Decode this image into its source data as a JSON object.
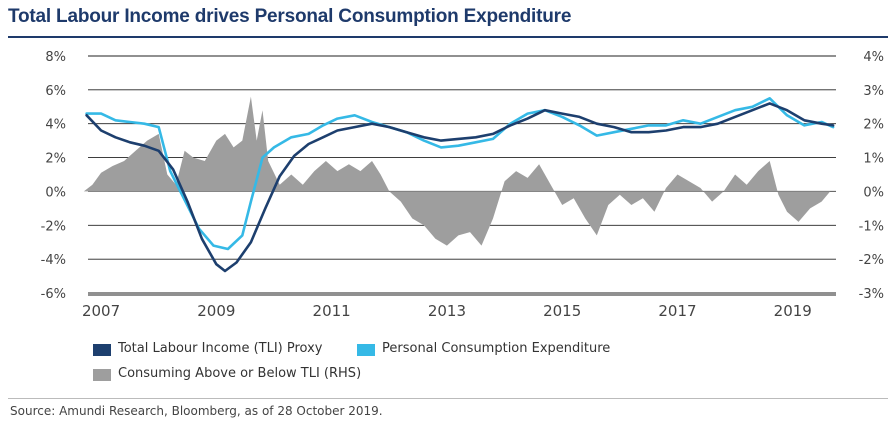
{
  "title": "Total Labour Income drives Personal Consumption Expenditure",
  "source": "Source: Amundi Research, Bloomberg, as of 28 October 2019.",
  "colors": {
    "tli": "#1d3f6e",
    "pce": "#35b9e6",
    "gap": "#9e9e9e",
    "title": "#1e3a6b"
  },
  "legend": {
    "tli": "Total Labour Income (TLI) Proxy",
    "pce": "Personal Consumption Expenditure",
    "gap": "Consuming Above or Below TLI (RHS)"
  },
  "chart_data": {
    "type": "line",
    "x_tick_labels": [
      "2007",
      "2009",
      "2011",
      "2013",
      "2015",
      "2017",
      "2019"
    ],
    "x_ticks": [
      2007,
      2009,
      2011,
      2013,
      2015,
      2017,
      2019
    ],
    "xlim": [
      2006.6,
      2019.75
    ],
    "y_left": {
      "ticks": [
        -6,
        -4,
        -2,
        0,
        2,
        4,
        6,
        8
      ],
      "labels": [
        "-6%",
        "-4%",
        "-2%",
        "0%",
        "2%",
        "4%",
        "6%",
        "8%"
      ],
      "ylim": [
        -6,
        8
      ]
    },
    "y_right": {
      "ticks": [
        -3,
        -2,
        -1,
        0,
        1,
        2,
        3,
        4
      ],
      "labels": [
        "-3%",
        "-2%",
        "-1%",
        "0%",
        "1%",
        "2%",
        "3%",
        "4%"
      ],
      "ylim": [
        -3,
        4
      ]
    },
    "series": [
      {
        "name": "Total Labour Income (TLI) Proxy",
        "axis": "left",
        "chart": "line",
        "points": [
          [
            2006.75,
            4.5
          ],
          [
            2007.0,
            3.6
          ],
          [
            2007.25,
            3.2
          ],
          [
            2007.5,
            2.9
          ],
          [
            2007.75,
            2.7
          ],
          [
            2008.0,
            2.4
          ],
          [
            2008.25,
            1.3
          ],
          [
            2008.5,
            -0.6
          ],
          [
            2008.75,
            -2.8
          ],
          [
            2009.0,
            -4.3
          ],
          [
            2009.15,
            -4.7
          ],
          [
            2009.35,
            -4.2
          ],
          [
            2009.6,
            -3.0
          ],
          [
            2009.85,
            -1.0
          ],
          [
            2010.1,
            0.9
          ],
          [
            2010.35,
            2.1
          ],
          [
            2010.6,
            2.8
          ],
          [
            2010.85,
            3.2
          ],
          [
            2011.1,
            3.6
          ],
          [
            2011.4,
            3.8
          ],
          [
            2011.7,
            4.0
          ],
          [
            2012.0,
            3.8
          ],
          [
            2012.3,
            3.5
          ],
          [
            2012.6,
            3.2
          ],
          [
            2012.9,
            3.0
          ],
          [
            2013.2,
            3.1
          ],
          [
            2013.5,
            3.2
          ],
          [
            2013.8,
            3.4
          ],
          [
            2014.1,
            3.9
          ],
          [
            2014.4,
            4.3
          ],
          [
            2014.7,
            4.8
          ],
          [
            2015.0,
            4.6
          ],
          [
            2015.3,
            4.4
          ],
          [
            2015.6,
            4.0
          ],
          [
            2015.9,
            3.8
          ],
          [
            2016.2,
            3.5
          ],
          [
            2016.5,
            3.5
          ],
          [
            2016.8,
            3.6
          ],
          [
            2017.1,
            3.8
          ],
          [
            2017.4,
            3.8
          ],
          [
            2017.7,
            4.0
          ],
          [
            2018.0,
            4.4
          ],
          [
            2018.3,
            4.8
          ],
          [
            2018.6,
            5.2
          ],
          [
            2018.9,
            4.8
          ],
          [
            2019.2,
            4.2
          ],
          [
            2019.5,
            4.0
          ],
          [
            2019.7,
            3.9
          ]
        ]
      },
      {
        "name": "Personal Consumption Expenditure",
        "axis": "left",
        "chart": "line",
        "points": [
          [
            2006.75,
            4.6
          ],
          [
            2007.0,
            4.6
          ],
          [
            2007.25,
            4.2
          ],
          [
            2007.5,
            4.1
          ],
          [
            2007.75,
            4.0
          ],
          [
            2008.0,
            3.8
          ],
          [
            2008.2,
            1.2
          ],
          [
            2008.45,
            -0.5
          ],
          [
            2008.7,
            -2.2
          ],
          [
            2008.95,
            -3.2
          ],
          [
            2009.2,
            -3.4
          ],
          [
            2009.45,
            -2.6
          ],
          [
            2009.6,
            -0.6
          ],
          [
            2009.8,
            2.0
          ],
          [
            2010.0,
            2.6
          ],
          [
            2010.3,
            3.2
          ],
          [
            2010.6,
            3.4
          ],
          [
            2010.85,
            3.9
          ],
          [
            2011.1,
            4.3
          ],
          [
            2011.4,
            4.5
          ],
          [
            2011.7,
            4.1
          ],
          [
            2012.0,
            3.8
          ],
          [
            2012.3,
            3.5
          ],
          [
            2012.6,
            3.0
          ],
          [
            2012.9,
            2.6
          ],
          [
            2013.2,
            2.7
          ],
          [
            2013.5,
            2.9
          ],
          [
            2013.8,
            3.1
          ],
          [
            2014.1,
            4.0
          ],
          [
            2014.4,
            4.6
          ],
          [
            2014.7,
            4.8
          ],
          [
            2015.0,
            4.4
          ],
          [
            2015.3,
            3.9
          ],
          [
            2015.6,
            3.3
          ],
          [
            2015.9,
            3.5
          ],
          [
            2016.2,
            3.7
          ],
          [
            2016.5,
            3.9
          ],
          [
            2016.8,
            3.9
          ],
          [
            2017.1,
            4.2
          ],
          [
            2017.4,
            4.0
          ],
          [
            2017.7,
            4.4
          ],
          [
            2018.0,
            4.8
          ],
          [
            2018.3,
            5.0
          ],
          [
            2018.6,
            5.5
          ],
          [
            2018.9,
            4.5
          ],
          [
            2019.2,
            3.9
          ],
          [
            2019.5,
            4.1
          ],
          [
            2019.7,
            3.8
          ]
        ]
      },
      {
        "name": "Consuming Above or Below TLI (RHS)",
        "axis": "right",
        "chart": "area",
        "points": [
          [
            2006.7,
            0.0
          ],
          [
            2006.85,
            0.2
          ],
          [
            2007.0,
            0.55
          ],
          [
            2007.2,
            0.75
          ],
          [
            2007.4,
            0.9
          ],
          [
            2007.6,
            1.2
          ],
          [
            2007.8,
            1.5
          ],
          [
            2008.0,
            1.7
          ],
          [
            2008.15,
            0.5
          ],
          [
            2008.3,
            0.2
          ],
          [
            2008.45,
            1.2
          ],
          [
            2008.6,
            1.0
          ],
          [
            2008.8,
            0.9
          ],
          [
            2009.0,
            1.5
          ],
          [
            2009.15,
            1.7
          ],
          [
            2009.3,
            1.3
          ],
          [
            2009.45,
            1.5
          ],
          [
            2009.6,
            2.8
          ],
          [
            2009.7,
            1.5
          ],
          [
            2009.8,
            2.4
          ],
          [
            2009.9,
            0.9
          ],
          [
            2010.1,
            0.2
          ],
          [
            2010.3,
            0.5
          ],
          [
            2010.5,
            0.2
          ],
          [
            2010.7,
            0.6
          ],
          [
            2010.9,
            0.9
          ],
          [
            2011.1,
            0.6
          ],
          [
            2011.3,
            0.8
          ],
          [
            2011.5,
            0.6
          ],
          [
            2011.7,
            0.9
          ],
          [
            2011.85,
            0.5
          ],
          [
            2012.0,
            0.0
          ],
          [
            2012.2,
            -0.3
          ],
          [
            2012.4,
            -0.8
          ],
          [
            2012.6,
            -1.0
          ],
          [
            2012.8,
            -1.4
          ],
          [
            2013.0,
            -1.6
          ],
          [
            2013.2,
            -1.3
          ],
          [
            2013.4,
            -1.2
          ],
          [
            2013.6,
            -1.6
          ],
          [
            2013.8,
            -0.8
          ],
          [
            2014.0,
            0.3
          ],
          [
            2014.2,
            0.6
          ],
          [
            2014.4,
            0.4
          ],
          [
            2014.6,
            0.8
          ],
          [
            2014.8,
            0.2
          ],
          [
            2015.0,
            -0.4
          ],
          [
            2015.2,
            -0.2
          ],
          [
            2015.4,
            -0.8
          ],
          [
            2015.6,
            -1.3
          ],
          [
            2015.8,
            -0.4
          ],
          [
            2016.0,
            -0.1
          ],
          [
            2016.2,
            -0.4
          ],
          [
            2016.4,
            -0.2
          ],
          [
            2016.6,
            -0.6
          ],
          [
            2016.8,
            0.1
          ],
          [
            2017.0,
            0.5
          ],
          [
            2017.2,
            0.3
          ],
          [
            2017.4,
            0.1
          ],
          [
            2017.6,
            -0.3
          ],
          [
            2017.8,
            0.0
          ],
          [
            2018.0,
            0.5
          ],
          [
            2018.2,
            0.2
          ],
          [
            2018.4,
            0.6
          ],
          [
            2018.6,
            0.9
          ],
          [
            2018.75,
            -0.1
          ],
          [
            2018.9,
            -0.6
          ],
          [
            2019.1,
            -0.9
          ],
          [
            2019.3,
            -0.5
          ],
          [
            2019.5,
            -0.3
          ],
          [
            2019.65,
            0.0
          ]
        ]
      }
    ],
    "grid": true,
    "legend": "bottom-left"
  }
}
